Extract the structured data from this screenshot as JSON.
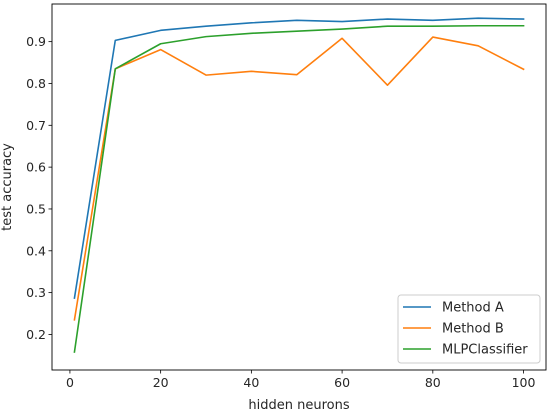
{
  "chart_data": {
    "type": "line",
    "title": "",
    "xlabel": "hidden neurons",
    "ylabel": "test accuracy",
    "xlim": [
      -3.95,
      104.95
    ],
    "ylim": [
      0.115,
      0.99
    ],
    "xticks": [
      0,
      20,
      40,
      60,
      80,
      100
    ],
    "yticks": [
      0.2,
      0.3,
      0.4,
      0.5,
      0.6,
      0.7,
      0.8,
      0.9
    ],
    "grid": false,
    "legend": "lower-right",
    "x": [
      1,
      10,
      20,
      30,
      40,
      50,
      60,
      70,
      80,
      90,
      100
    ],
    "series": [
      {
        "name": "Method A",
        "color": "#1f77b4",
        "values": [
          0.287,
          0.903,
          0.927,
          0.937,
          0.945,
          0.951,
          0.948,
          0.954,
          0.951,
          0.956,
          0.954
        ]
      },
      {
        "name": "Method B",
        "color": "#ff7f0e",
        "values": [
          0.235,
          0.835,
          0.881,
          0.82,
          0.829,
          0.821,
          0.908,
          0.796,
          0.911,
          0.89,
          0.834
        ]
      },
      {
        "name": "MLPClassifier",
        "color": "#2ca02c",
        "values": [
          0.158,
          0.835,
          0.895,
          0.912,
          0.92,
          0.925,
          0.93,
          0.937,
          0.937,
          0.938,
          0.938
        ]
      }
    ]
  }
}
